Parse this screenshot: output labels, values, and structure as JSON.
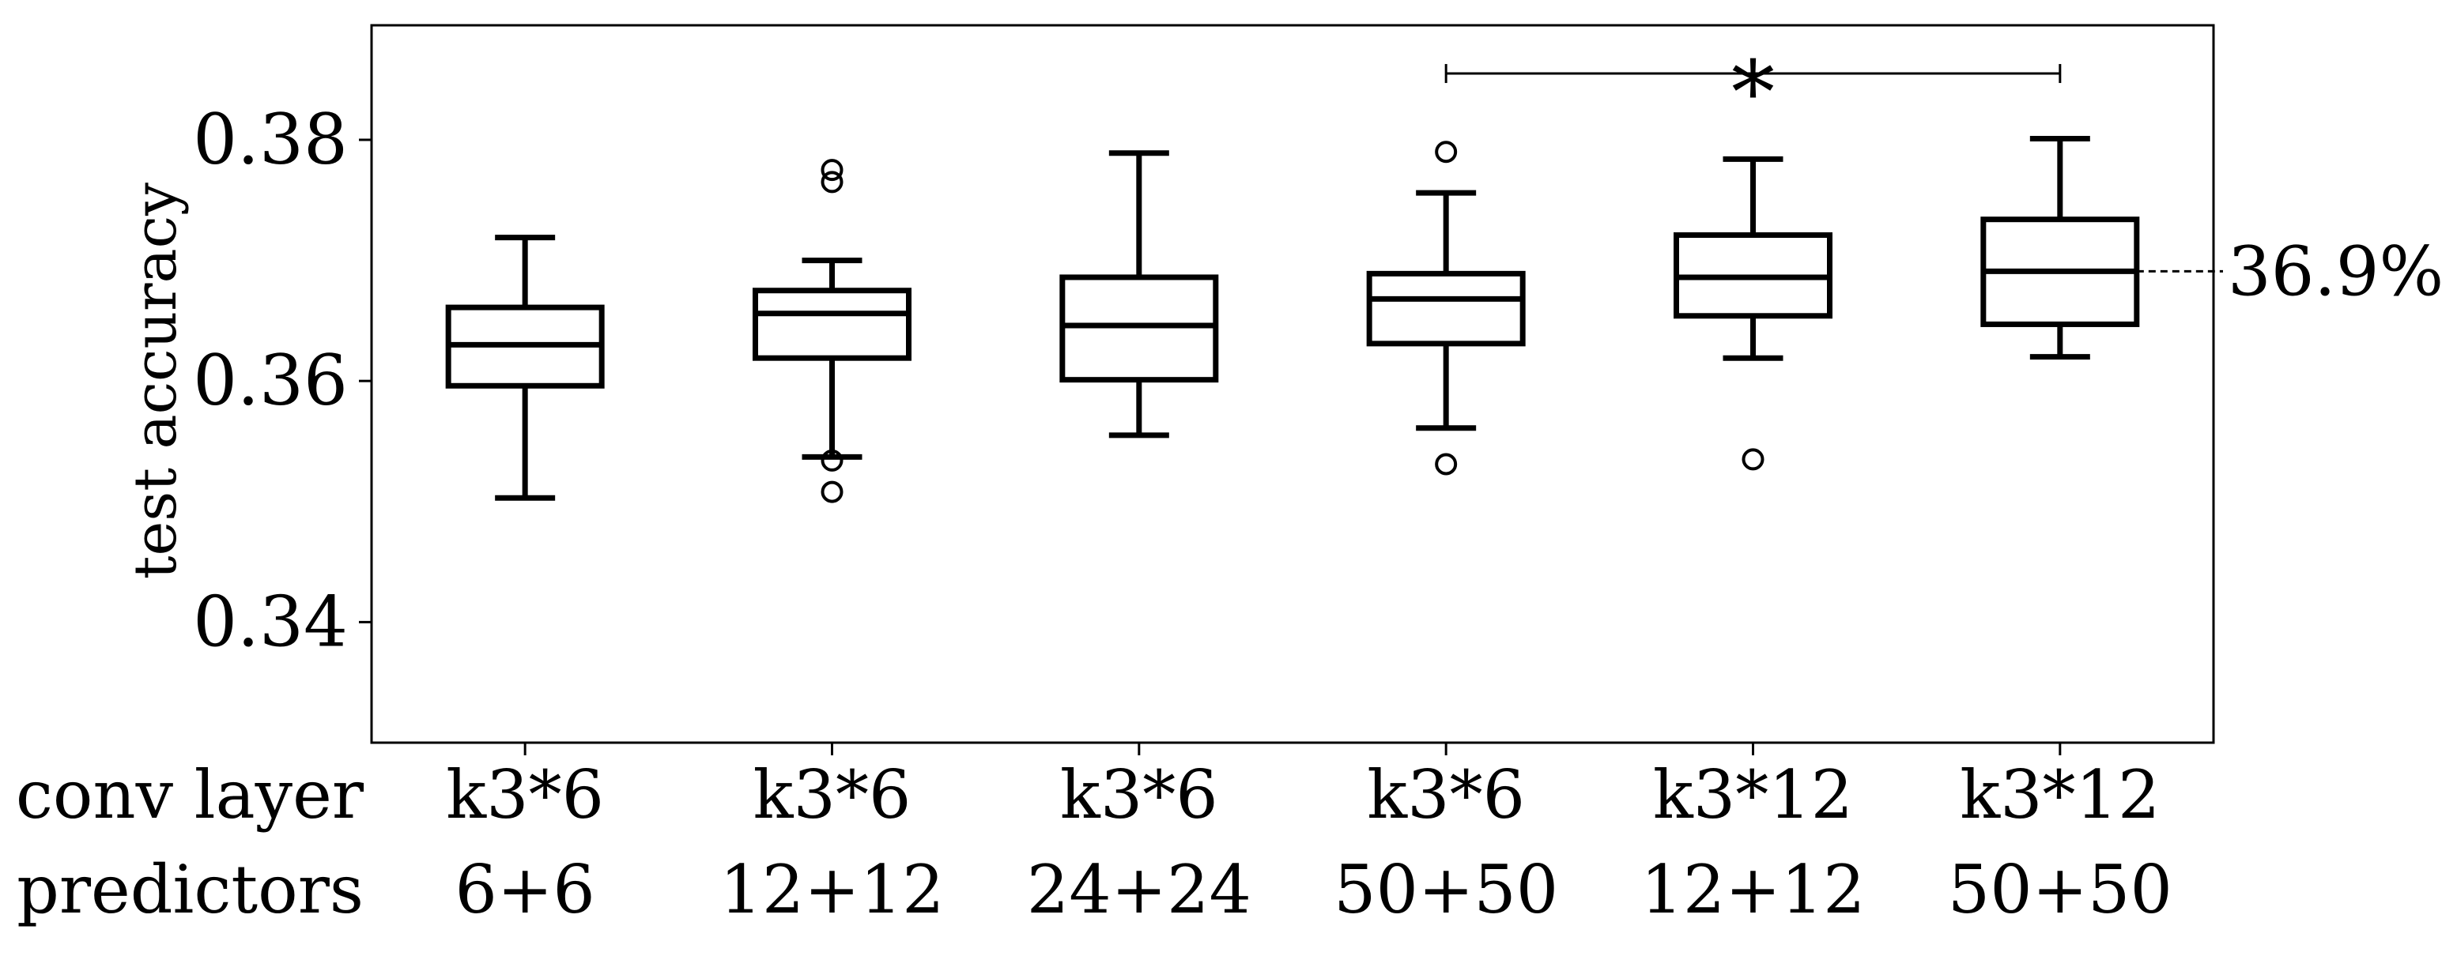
{
  "chart_data": {
    "type": "box",
    "ylabel": "test accuracy",
    "ylim": [
      0.33,
      0.3895
    ],
    "yticks": [
      {
        "value": 0.34,
        "label": "0.34"
      },
      {
        "value": 0.36,
        "label": "0.36"
      },
      {
        "value": 0.38,
        "label": "0.38"
      }
    ],
    "row_labels": [
      "conv layer",
      "predictors"
    ],
    "categories": [
      {
        "conv_layer": "k3*6",
        "predictors": "6+6"
      },
      {
        "conv_layer": "k3*6",
        "predictors": "12+12"
      },
      {
        "conv_layer": "k3*6",
        "predictors": "24+24"
      },
      {
        "conv_layer": "k3*6",
        "predictors": "50+50"
      },
      {
        "conv_layer": "k3*12",
        "predictors": "12+12"
      },
      {
        "conv_layer": "k3*12",
        "predictors": "50+50"
      }
    ],
    "boxes": [
      {
        "whisker_low": 0.3503,
        "q1": 0.3596,
        "median": 0.363,
        "q3": 0.3661,
        "whisker_high": 0.3719,
        "outliers": []
      },
      {
        "whisker_low": 0.3537,
        "q1": 0.3619,
        "median": 0.3656,
        "q3": 0.3675,
        "whisker_high": 0.37,
        "outliers": [
          0.3508,
          0.3534,
          0.3765,
          0.3775
        ]
      },
      {
        "whisker_low": 0.3555,
        "q1": 0.3601,
        "median": 0.3646,
        "q3": 0.3686,
        "whisker_high": 0.3789,
        "outliers": []
      },
      {
        "whisker_low": 0.3561,
        "q1": 0.3631,
        "median": 0.3668,
        "q3": 0.3689,
        "whisker_high": 0.3756,
        "outliers": [
          0.3531,
          0.379
        ]
      },
      {
        "whisker_low": 0.3619,
        "q1": 0.3654,
        "median": 0.3686,
        "q3": 0.3721,
        "whisker_high": 0.3784,
        "outliers": [
          0.3535
        ]
      },
      {
        "whisker_low": 0.362,
        "q1": 0.3647,
        "median": 0.3691,
        "q3": 0.3734,
        "whisker_high": 0.3801,
        "outliers": []
      }
    ],
    "annotations": {
      "median_label": {
        "box_index": 5,
        "value": 0.3691,
        "text": "36.9%"
      },
      "significance": {
        "from_index": 3,
        "to_index": 5,
        "y": 0.3855,
        "text": "*"
      }
    },
    "grid": false
  }
}
